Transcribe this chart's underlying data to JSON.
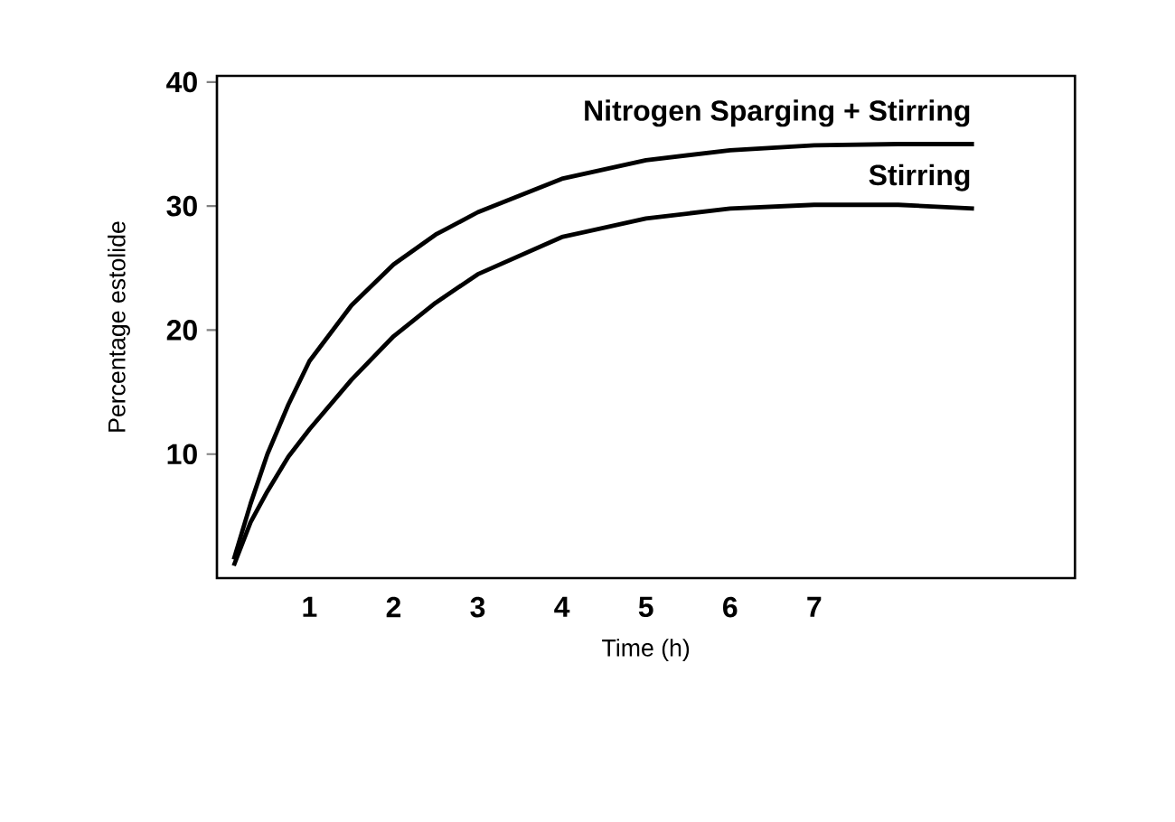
{
  "chart_data": {
    "type": "line",
    "xlabel": "Time (h)",
    "ylabel": "Percentage estolide",
    "xlim": [
      -0.1,
      10.1
    ],
    "ylim": [
      0,
      40.5
    ],
    "xticks": [
      1,
      2,
      3,
      4,
      5,
      6,
      7
    ],
    "yticks": [
      10,
      20,
      30,
      40
    ],
    "grid": false,
    "legend": false,
    "marker": "none",
    "line_style": "solid",
    "series": [
      {
        "name": "Nitrogen Sparging + Stirring",
        "color": "#000000",
        "x": [
          0.1,
          0.3,
          0.5,
          0.75,
          1,
          1.5,
          2,
          2.5,
          3,
          4,
          5,
          6,
          7,
          8,
          8.9
        ],
        "values": [
          1.5,
          6,
          10,
          14,
          17.5,
          22,
          25.3,
          27.7,
          29.5,
          32.2,
          33.7,
          34.5,
          34.9,
          35,
          35
        ]
      },
      {
        "name": "Stirring",
        "color": "#000000",
        "x": [
          0.1,
          0.3,
          0.5,
          0.75,
          1,
          1.5,
          2,
          2.5,
          3,
          4,
          5,
          6,
          7,
          8,
          8.9
        ],
        "values": [
          1,
          4.5,
          7,
          9.8,
          12,
          16,
          19.5,
          22.2,
          24.5,
          27.5,
          29,
          29.8,
          30.1,
          30.1,
          29.8
        ]
      }
    ]
  }
}
